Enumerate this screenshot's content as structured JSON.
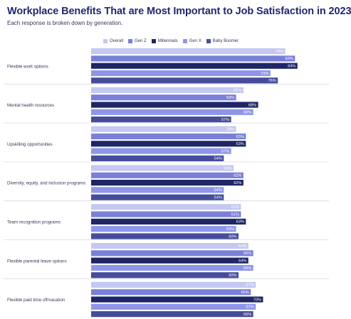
{
  "chart_data": {
    "type": "bar",
    "orientation": "horizontal",
    "title": "Workplace Benefits That are Most Important to Job Satisfaction in 2023",
    "subtitle": "Each response is broken down by generation.",
    "legend_position": "top",
    "grid": false,
    "xlim": [
      0,
      100
    ],
    "categories": [
      "Flexible work options",
      "Mental health resources",
      "Upskilling opportunities",
      "Diversity, equity, and inclusion programs",
      "Team recognition programs",
      "Flexible parental leave options",
      "Flexible paid time off/vacation"
    ],
    "series": [
      {
        "name": "Overall",
        "color": "#c4c8f2",
        "values": [
          79,
          62,
          59,
          58,
          61,
          64,
          67
        ]
      },
      {
        "name": "Gen Z",
        "color": "#7a80d8",
        "values": [
          83,
          59,
          63,
          62,
          61,
          66,
          65
        ]
      },
      {
        "name": "Millennials",
        "color": "#1e2666",
        "values": [
          84,
          68,
          63,
          62,
          63,
          64,
          70
        ]
      },
      {
        "name": "Gen X",
        "color": "#8e96ea",
        "values": [
          73,
          66,
          57,
          54,
          59,
          66,
          67
        ]
      },
      {
        "name": "Baby Boomer",
        "color": "#454d9a",
        "values": [
          76,
          57,
          54,
          54,
          60,
          60,
          66
        ]
      }
    ],
    "value_suffix": "%"
  }
}
